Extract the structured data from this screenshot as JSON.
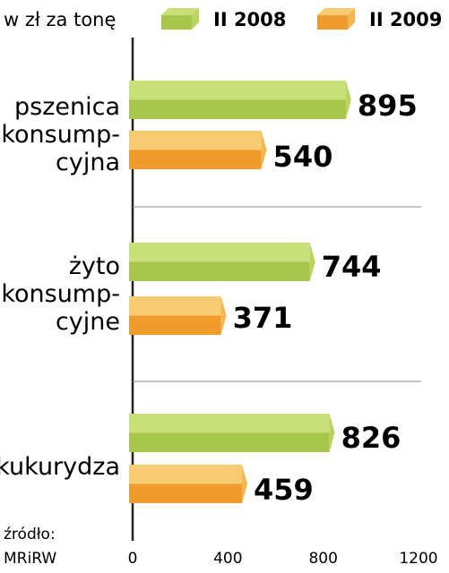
{
  "unit_label": "w zł za tonę",
  "source_label": "źródło:",
  "source_name": "MRiRW",
  "colors": {
    "series_2008_top": "#c8df7a",
    "series_2008_front": "#a6c64c",
    "series_2008_end": "#b8d564",
    "series_2009_top": "#f7cb72",
    "series_2009_front": "#ef9b2e",
    "series_2009_end": "#f3b752",
    "axis": "#222222",
    "separator": "#8a8a8a"
  },
  "chart_data": {
    "type": "bar",
    "orientation": "horizontal",
    "categories": [
      [
        "pszenica",
        "konsump-",
        "cyjna"
      ],
      [
        "żyto",
        "konsump-",
        "cyjne"
      ],
      [
        "kukurydza"
      ]
    ],
    "series": [
      {
        "name": "II 2008",
        "values": [
          895,
          744,
          826
        ]
      },
      {
        "name": "II 2009",
        "values": [
          540,
          371,
          459
        ]
      }
    ],
    "value_labels": [
      [
        "895",
        "744",
        "826"
      ],
      [
        "540",
        "371",
        "459"
      ]
    ],
    "x_ticks": [
      "0",
      "400",
      "800",
      "1200"
    ],
    "xlim": [
      0,
      1200
    ],
    "legend_position": "top",
    "grid": false
  }
}
